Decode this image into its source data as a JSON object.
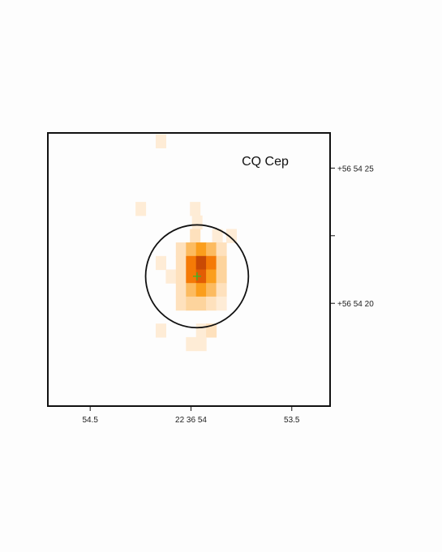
{
  "chart_data": {
    "type": "heatmap",
    "title": "CQ Cep",
    "xlabel": "",
    "ylabel": "",
    "x_axis": {
      "direction": "decreasing-right",
      "range_seconds": [
        54.71,
        53.31
      ],
      "ticks": [
        {
          "value": 54.5,
          "label": "54.5"
        },
        {
          "value": 54.0,
          "label": "22 36 54"
        },
        {
          "value": 53.5,
          "label": "53.5"
        }
      ]
    },
    "y_axis": {
      "position": "right",
      "range_arcsec": [
        16.2,
        26.3
      ],
      "ticks": [
        {
          "value": 25,
          "label": "+56 54 25"
        },
        {
          "value": 22.5,
          "label": ""
        },
        {
          "value": 20,
          "label": "+56 54 20"
        }
      ]
    },
    "grid": false,
    "legend": "none",
    "colormap": [
      "#fdfdfd",
      "#feecd6",
      "#fee1bd",
      "#fdd49d",
      "#fcbb60",
      "#fb9e1c",
      "#f57a06",
      "#e25d04",
      "#c94a04"
    ],
    "pixel_size_arcsec": 0.5,
    "pixels": [
      {
        "ra_s": 54.15,
        "dec_as": 26.0,
        "level": 1
      },
      {
        "ra_s": 54.25,
        "dec_as": 23.5,
        "level": 1
      },
      {
        "ra_s": 53.98,
        "dec_as": 23.5,
        "level": 1
      },
      {
        "ra_s": 53.97,
        "dec_as": 23.0,
        "level": 1
      },
      {
        "ra_s": 53.98,
        "dec_as": 22.5,
        "level": 2
      },
      {
        "ra_s": 53.87,
        "dec_as": 22.5,
        "level": 1
      },
      {
        "ra_s": 53.8,
        "dec_as": 22.5,
        "level": 1
      },
      {
        "ra_s": 54.05,
        "dec_as": 22.0,
        "level": 2
      },
      {
        "ra_s": 54.0,
        "dec_as": 22.0,
        "level": 4
      },
      {
        "ra_s": 53.95,
        "dec_as": 22.0,
        "level": 5
      },
      {
        "ra_s": 53.9,
        "dec_as": 22.0,
        "level": 4
      },
      {
        "ra_s": 53.85,
        "dec_as": 22.0,
        "level": 2
      },
      {
        "ra_s": 54.15,
        "dec_as": 21.5,
        "level": 1
      },
      {
        "ra_s": 54.05,
        "dec_as": 21.5,
        "level": 2
      },
      {
        "ra_s": 54.0,
        "dec_as": 21.5,
        "level": 6
      },
      {
        "ra_s": 53.95,
        "dec_as": 21.5,
        "level": 8
      },
      {
        "ra_s": 53.9,
        "dec_as": 21.5,
        "level": 6
      },
      {
        "ra_s": 53.85,
        "dec_as": 21.5,
        "level": 3
      },
      {
        "ra_s": 54.1,
        "dec_as": 21.0,
        "level": 1
      },
      {
        "ra_s": 54.05,
        "dec_as": 21.0,
        "level": 2
      },
      {
        "ra_s": 54.0,
        "dec_as": 21.0,
        "level": 6
      },
      {
        "ra_s": 53.95,
        "dec_as": 21.0,
        "level": 7
      },
      {
        "ra_s": 53.9,
        "dec_as": 21.0,
        "level": 5
      },
      {
        "ra_s": 53.85,
        "dec_as": 21.0,
        "level": 3
      },
      {
        "ra_s": 54.05,
        "dec_as": 20.5,
        "level": 2
      },
      {
        "ra_s": 54.0,
        "dec_as": 20.5,
        "level": 4
      },
      {
        "ra_s": 53.95,
        "dec_as": 20.5,
        "level": 5
      },
      {
        "ra_s": 53.9,
        "dec_as": 20.5,
        "level": 4
      },
      {
        "ra_s": 53.85,
        "dec_as": 20.5,
        "level": 2
      },
      {
        "ra_s": 54.05,
        "dec_as": 20.0,
        "level": 2
      },
      {
        "ra_s": 54.0,
        "dec_as": 20.0,
        "level": 3
      },
      {
        "ra_s": 53.95,
        "dec_as": 20.0,
        "level": 3
      },
      {
        "ra_s": 53.9,
        "dec_as": 20.0,
        "level": 2
      },
      {
        "ra_s": 53.85,
        "dec_as": 20.0,
        "level": 1
      },
      {
        "ra_s": 54.15,
        "dec_as": 19.0,
        "level": 1
      },
      {
        "ra_s": 53.95,
        "dec_as": 19.0,
        "level": 1
      },
      {
        "ra_s": 53.9,
        "dec_as": 19.0,
        "level": 2
      },
      {
        "ra_s": 54.0,
        "dec_as": 18.5,
        "level": 1
      },
      {
        "ra_s": 53.95,
        "dec_as": 18.5,
        "level": 1
      }
    ],
    "source_region": {
      "shape": "circle",
      "center_ra_s": 53.97,
      "center_dec_as": 21.0,
      "radius_arcsec": 1.9
    },
    "source_marker": {
      "shape": "cross",
      "color": "#2bbf2b"
    }
  }
}
